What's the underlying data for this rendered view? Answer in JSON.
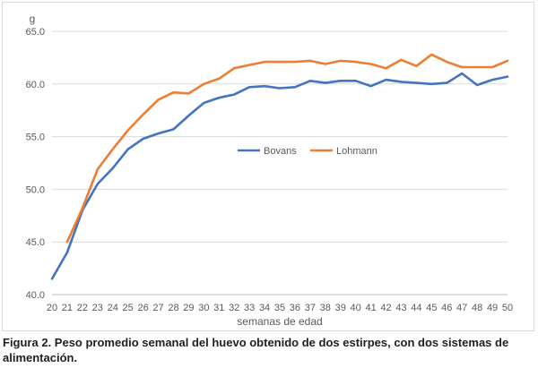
{
  "chart_data": {
    "type": "line",
    "title": "",
    "ylabel": "g",
    "xlabel": "semanas de edad",
    "ylim": [
      40,
      65
    ],
    "yticks": [
      "40.0",
      "45.0",
      "50.0",
      "55.0",
      "60.0",
      "65.0"
    ],
    "grid": "horizontal",
    "legend": "center",
    "x": [
      20,
      21,
      22,
      23,
      24,
      25,
      26,
      27,
      28,
      29,
      30,
      31,
      32,
      33,
      34,
      35,
      36,
      37,
      38,
      39,
      40,
      41,
      42,
      43,
      44,
      45,
      46,
      47,
      48,
      49,
      50
    ],
    "series": [
      {
        "name": "Bovans",
        "color": "#4472c4",
        "values": [
          41.5,
          44.0,
          48.0,
          50.5,
          52.0,
          53.8,
          54.8,
          55.3,
          55.7,
          57.0,
          58.2,
          58.7,
          59.0,
          59.7,
          59.8,
          59.6,
          59.7,
          60.3,
          60.1,
          60.3,
          60.3,
          59.8,
          60.4,
          60.2,
          60.1,
          60.0,
          60.1,
          61.0,
          59.9,
          60.4,
          60.7
        ]
      },
      {
        "name": "Lohmann",
        "color": "#ed7d31",
        "values": [
          null,
          45.0,
          48.2,
          51.9,
          53.8,
          55.6,
          57.1,
          58.5,
          59.2,
          59.1,
          60.0,
          60.5,
          61.5,
          61.8,
          62.1,
          62.1,
          62.1,
          62.2,
          61.9,
          62.2,
          62.1,
          61.9,
          61.5,
          62.3,
          61.7,
          62.8,
          62.1,
          61.6,
          61.6,
          61.6,
          62.2
        ]
      }
    ]
  },
  "caption": "Figura 2. Peso promedio semanal del huevo obtenido de dos estirpes, con dos sistemas de alimentación."
}
